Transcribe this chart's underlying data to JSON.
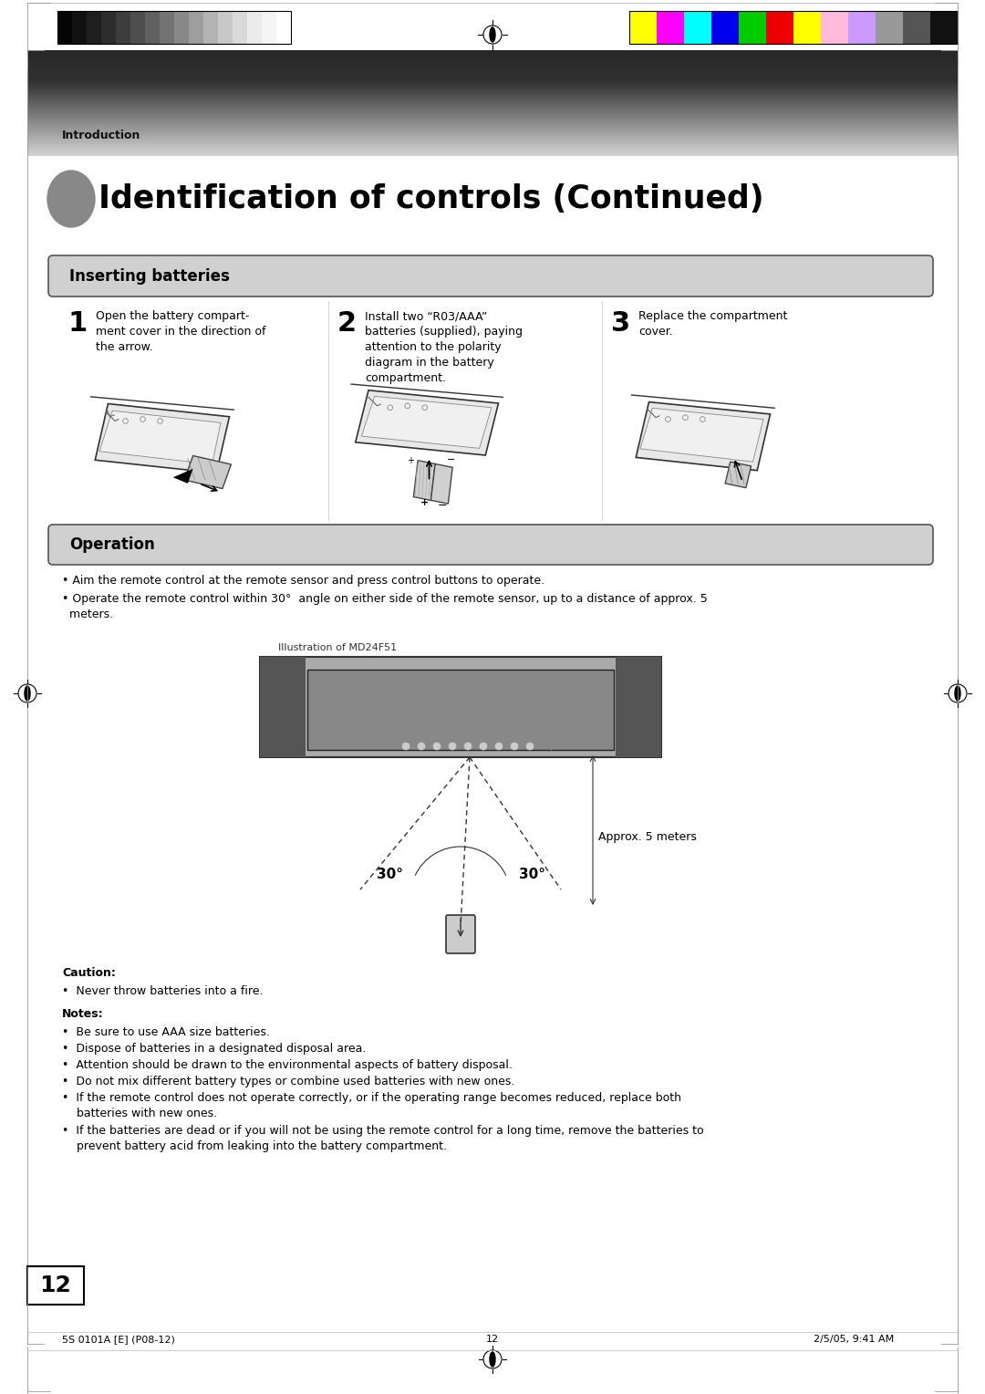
{
  "page_title": "Identification of controls (Continued)",
  "section1_title": "Inserting batteries",
  "section2_title": "Operation",
  "intro_label": "Introduction",
  "step1_num": "1",
  "step2_num": "2",
  "step3_num": "3",
  "step1_text": "Open the battery compart-\nment cover in the direction of\nthe arrow.",
  "step2_text": "Install two “R03/AAA”\nbatteries (supplied), paying\nattention to the polarity\ndiagram in the battery\ncompartment.",
  "step3_text": "Replace the compartment\ncover.",
  "op_bullet1": "• Aim the remote control at the remote sensor and press control buttons to operate.",
  "op_bullet2": "• Operate the remote control within 30°  angle on either side of the remote sensor, up to a distance of approx. 5\n  meters.",
  "illus_label": "Illustration of MD24F51",
  "approx_label": "Approx. 5 meters",
  "angle_label_left": "30°",
  "angle_label_right": "30°",
  "caution_title": "Caution:",
  "caution_text": "•  Never throw batteries into a fire.",
  "notes_title": "Notes:",
  "notes": [
    "•  Be sure to use AAA size batteries.",
    "•  Dispose of batteries in a designated disposal area.",
    "•  Attention should be drawn to the environmental aspects of battery disposal.",
    "•  Do not mix different battery types or combine used batteries with new ones.",
    "•  If the remote control does not operate correctly, or if the operating range becomes reduced, replace both\n    batteries with new ones.",
    "•  If the batteries are dead or if you will not be using the remote control for a long time, remove the batteries to\n    prevent battery acid from leaking into the battery compartment."
  ],
  "page_num": "12",
  "footer_left": "5S 0101A [E] (P08-12)",
  "footer_center": "12",
  "footer_right": "2/5/05, 9:41 AM",
  "bg_color": "#ffffff"
}
